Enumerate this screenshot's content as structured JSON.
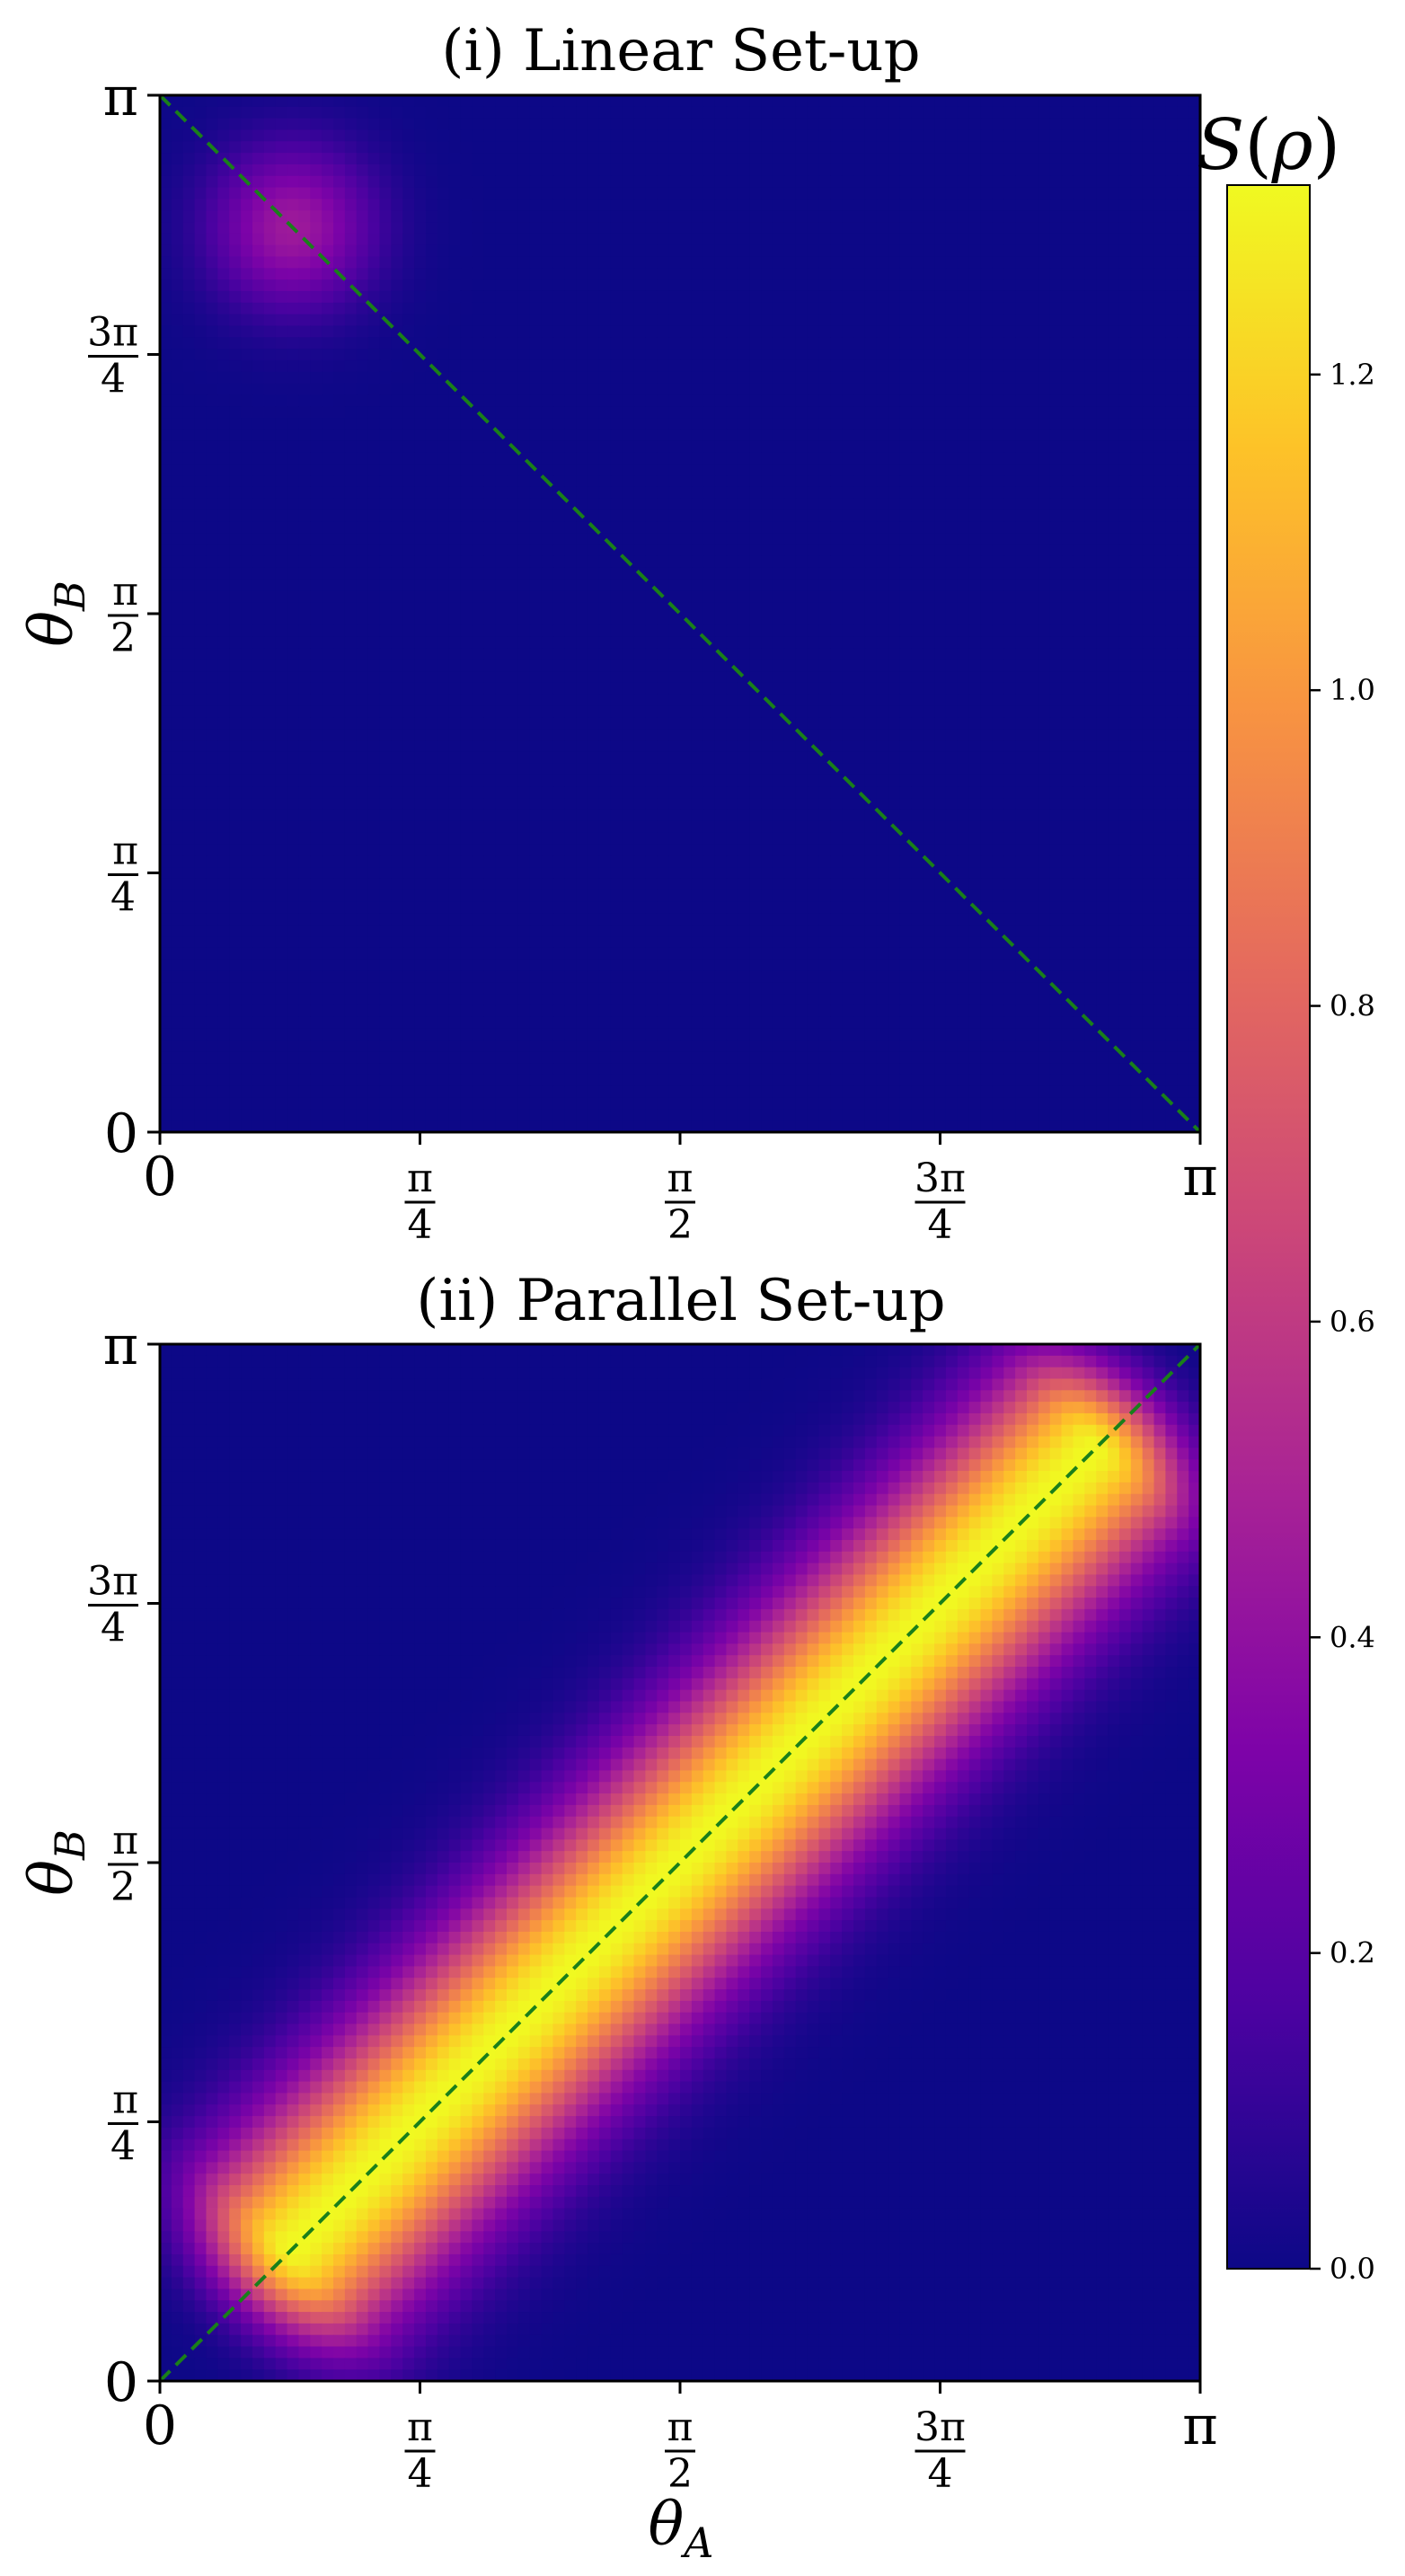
{
  "chart_data": [
    {
      "type": "heatmap",
      "title": "(i) Linear Set-up",
      "xlabel": "",
      "ylabel": "θ_B",
      "xlim": [
        0,
        3.14159
      ],
      "ylim": [
        0,
        3.14159
      ],
      "x_ticks": [
        0,
        0.785398,
        1.570796,
        2.356194,
        3.141593
      ],
      "x_tick_labels": [
        "0",
        "π/4",
        "π/2",
        "3π/4",
        "π"
      ],
      "y_ticks": [
        0,
        0.785398,
        1.570796,
        2.356194,
        3.141593
      ],
      "y_tick_labels": [
        "0",
        "π/4",
        "π/2",
        "3π/4",
        "π"
      ],
      "colormap": "plasma",
      "grid": false,
      "reference_line": {
        "from": [
          0,
          3.141593
        ],
        "to": [
          3.141593,
          0
        ],
        "style": "dashed",
        "color": "#1a7f1a"
      },
      "features": [
        {
          "shape": "blob",
          "center_theta_A": 0.4,
          "center_theta_B": 2.74,
          "peak_value": 0.45,
          "spread": 0.17
        }
      ],
      "background_value": 0.0
    },
    {
      "type": "heatmap",
      "title": "(ii) Parallel Set-up",
      "xlabel": "θ_A",
      "ylabel": "θ_B",
      "xlim": [
        0,
        3.14159
      ],
      "ylim": [
        0,
        3.14159
      ],
      "x_ticks": [
        0,
        0.785398,
        1.570796,
        2.356194,
        3.141593
      ],
      "x_tick_labels": [
        "0",
        "π/4",
        "π/2",
        "3π/4",
        "π"
      ],
      "y_ticks": [
        0,
        0.785398,
        1.570796,
        2.356194,
        3.141593
      ],
      "y_tick_labels": [
        "0",
        "π/4",
        "π/2",
        "3π/4",
        "π"
      ],
      "colormap": "plasma",
      "grid": false,
      "reference_line": {
        "from": [
          0,
          0
        ],
        "to": [
          3.141593,
          3.141593
        ],
        "style": "dashed",
        "color": "#1a7f1a"
      },
      "features": [
        {
          "shape": "diagonal-band",
          "from_theta": 0.4,
          "to_theta": 2.82,
          "peak_value": 1.32,
          "width_sigma": 0.23
        }
      ],
      "background_value": 0.0
    }
  ],
  "colorbar": {
    "label": "S(ρ)",
    "label_base": "S",
    "label_arg": "ρ",
    "vmin": 0.0,
    "vmax": 1.32,
    "ticks": [
      0.0,
      0.2,
      0.4,
      0.6,
      0.8,
      1.0,
      1.2
    ],
    "tick_labels": [
      "0.0",
      "0.2",
      "0.4",
      "0.6",
      "0.8",
      "1.0",
      "1.2"
    ]
  },
  "labels": {
    "xlabel_base": "θ",
    "xlabel_sub": "A",
    "ylabel_base": "θ",
    "ylabel_sub": "B",
    "pi": "π",
    "zero": "0",
    "frac_one": "π",
    "frac_three": "3π",
    "den_four": "4",
    "den_two": "2"
  }
}
